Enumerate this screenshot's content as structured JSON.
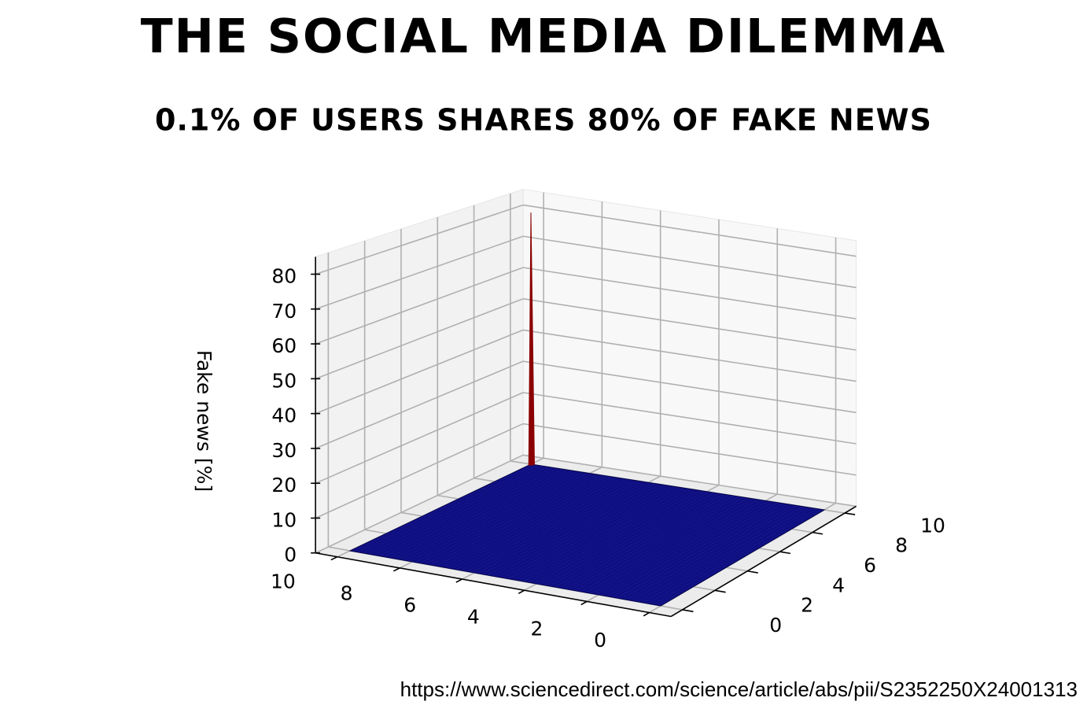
{
  "chart_data": {
    "type": "surface3d",
    "title": "THE SOCIAL MEDIA DILEMMA",
    "subtitle": "0.1% OF USERS SHARES 80% OF FAKE NEWS",
    "zlabel": "Fake news [%]",
    "source": "https://www.sciencedirect.com/science/article/abs/pii/S2352250X24001313",
    "xlim": [
      0,
      10
    ],
    "ylim": [
      0,
      10
    ],
    "zlim": [
      0,
      85
    ],
    "xticks": [
      0,
      2,
      4,
      6,
      8,
      10
    ],
    "yticks": [
      0,
      2,
      4,
      6,
      8,
      10
    ],
    "zticks": [
      0,
      10,
      20,
      30,
      40,
      50,
      60,
      70,
      80
    ],
    "floor_z": 0,
    "peak": {
      "x": 10,
      "y": 10,
      "z": 80
    },
    "surface_color": "#14148c",
    "peak_color": "#8b0000",
    "grid": true
  }
}
